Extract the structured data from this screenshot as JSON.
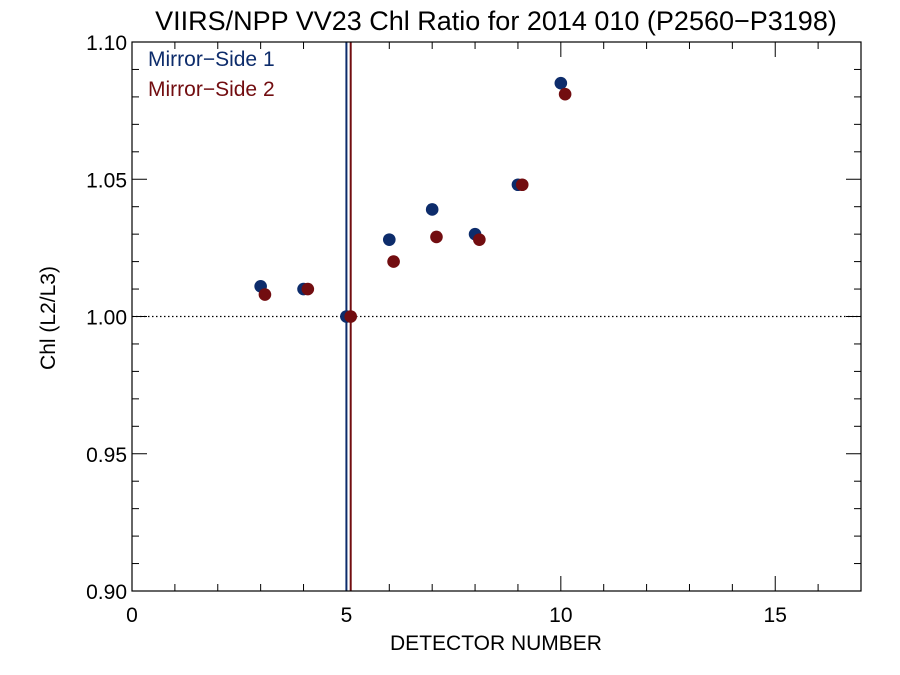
{
  "chart_data": {
    "type": "scatter",
    "title": "VIIRS/NPP VV23 Chl Ratio for 2014 010 (P2560−P3198)",
    "xlabel": "DETECTOR NUMBER",
    "ylabel": "Chl (L2/L3)",
    "xlim": [
      0,
      17
    ],
    "ylim": [
      0.9,
      1.1
    ],
    "xticks": [
      0,
      5,
      10,
      15
    ],
    "xtick_labels": [
      "0",
      "5",
      "10",
      "15"
    ],
    "yticks": [
      0.9,
      0.95,
      1.0,
      1.05,
      1.1
    ],
    "ytick_labels": [
      "0.90",
      "0.95",
      "1.00",
      "1.05",
      "1.10"
    ],
    "reference_line_y": 1.0,
    "grid": false,
    "legend_position": "top-left",
    "series": [
      {
        "name": "Mirror−Side 1",
        "color": "#0d2c6b",
        "vline_x": 5.0,
        "x": [
          3,
          4,
          5,
          6,
          7,
          8,
          9,
          10
        ],
        "y": [
          1.011,
          1.01,
          1.0,
          1.028,
          1.039,
          1.03,
          1.048,
          1.085
        ]
      },
      {
        "name": "Mirror−Side 2",
        "color": "#720d10",
        "vline_x": 5.1,
        "x": [
          3.1,
          4.1,
          5.1,
          6.1,
          7.1,
          8.1,
          9.1,
          10.1
        ],
        "y": [
          1.008,
          1.01,
          1.0,
          1.02,
          1.029,
          1.028,
          1.048,
          1.081
        ]
      }
    ]
  }
}
